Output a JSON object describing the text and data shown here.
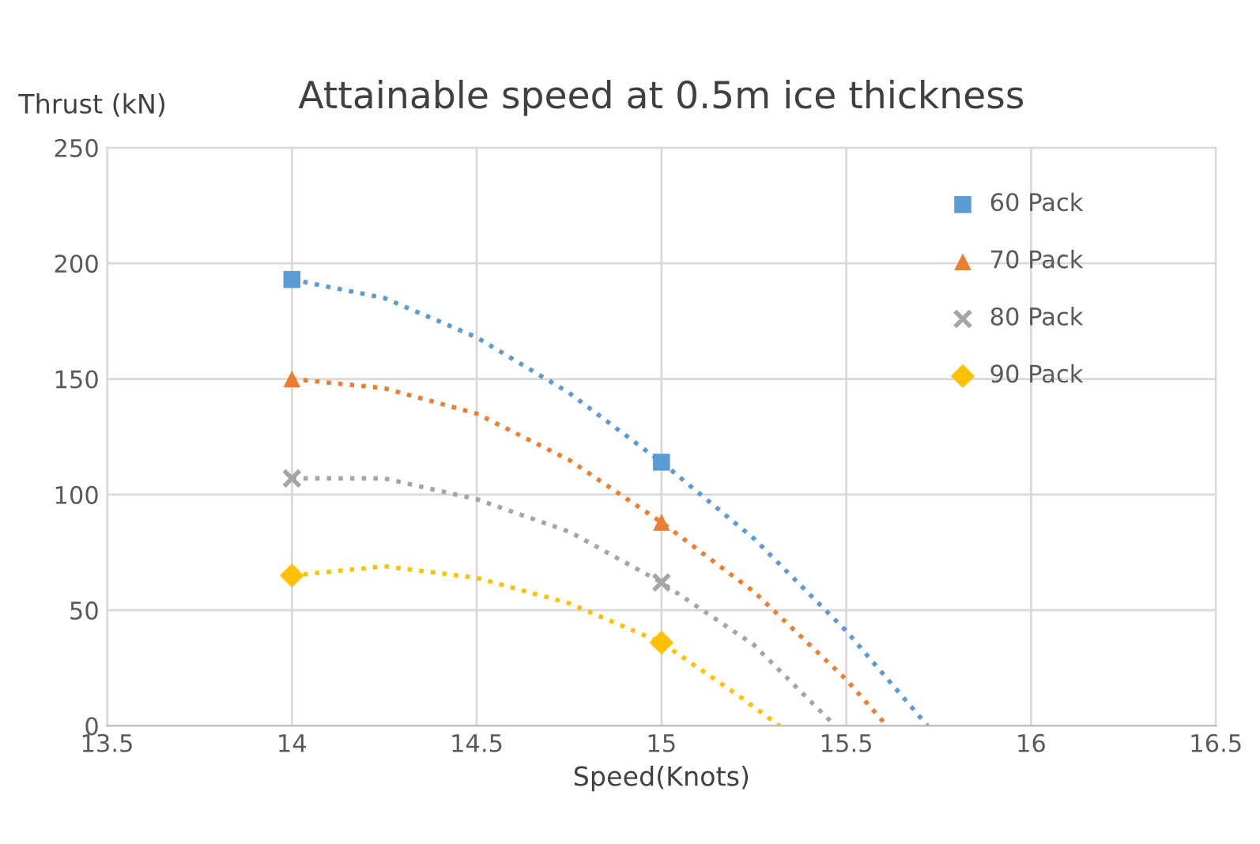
{
  "chart_data": {
    "type": "scatter",
    "title": "Attainable speed at 0.5m ice thickness",
    "xlabel": "Speed(Knots)",
    "ylabel": "Thrust (kN)",
    "xlim": [
      13.5,
      16.5
    ],
    "xticks": [
      13.5,
      14,
      14.5,
      15,
      15.5,
      16,
      16.5
    ],
    "ylim": [
      0,
      250
    ],
    "yticks": [
      0,
      50,
      100,
      150,
      200,
      250
    ],
    "grid": true,
    "legend": "top right",
    "series": [
      {
        "name": "60 Pack",
        "color": "#5b9bd5",
        "marker": "square",
        "x": [
          14,
          15
        ],
        "values": [
          193,
          114
        ]
      },
      {
        "name": "70 Pack",
        "color": "#ed7d31",
        "marker": "triangle",
        "x": [
          14,
          15
        ],
        "values": [
          150,
          88
        ]
      },
      {
        "name": "80 Pack",
        "color": "#a5a5a5",
        "marker": "cross",
        "x": [
          14,
          15
        ],
        "values": [
          107,
          62
        ]
      },
      {
        "name": "90 Pack",
        "color": "#ffc000",
        "marker": "diamond",
        "x": [
          14,
          15
        ],
        "values": [
          65,
          36
        ]
      },
      {
        "type": "line",
        "color": "#5b9bd5",
        "line_style": "dotted",
        "x": [
          14,
          14.25,
          14.5,
          14.75,
          15,
          15.25,
          15.5,
          15.72
        ],
        "values": [
          193,
          185,
          168,
          144,
          114,
          81,
          41,
          0
        ]
      },
      {
        "type": "line",
        "color": "#ed7d31",
        "line_style": "dotted",
        "x": [
          14,
          14.25,
          14.5,
          14.75,
          15,
          15.25,
          15.5,
          15.61
        ],
        "values": [
          150,
          146,
          135,
          115,
          88,
          58,
          20,
          0
        ]
      },
      {
        "type": "line",
        "color": "#a5a5a5",
        "line_style": "dotted",
        "x": [
          14,
          14.25,
          14.5,
          14.75,
          15,
          15.25,
          15.47
        ],
        "values": [
          107,
          107,
          98,
          84,
          62,
          35,
          0
        ]
      },
      {
        "type": "line",
        "color": "#ffc000",
        "line_style": "dotted",
        "x": [
          14,
          14.25,
          14.5,
          14.75,
          15,
          15.2,
          15.32
        ],
        "values": [
          65,
          69,
          64,
          53,
          36,
          14,
          0
        ]
      }
    ]
  }
}
